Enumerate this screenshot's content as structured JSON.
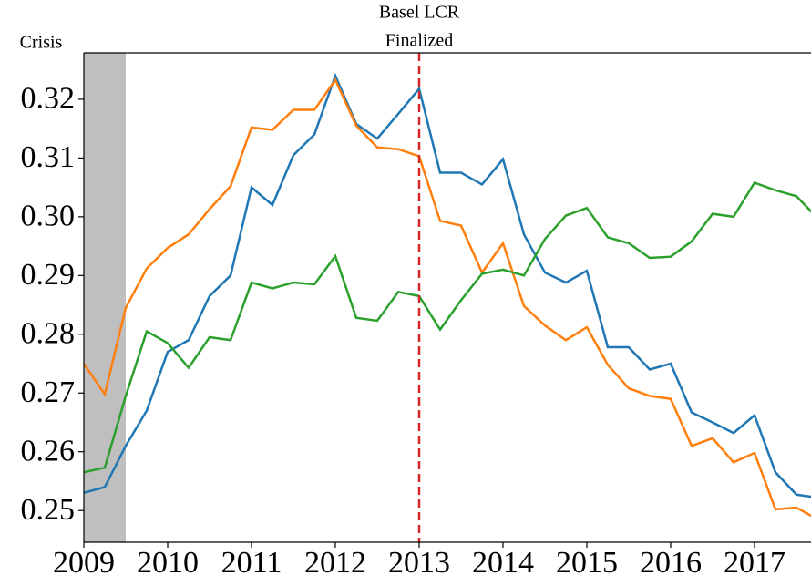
{
  "chart_data": {
    "type": "line",
    "x": [
      2009,
      2009.25,
      2009.5,
      2009.75,
      2010,
      2010.25,
      2010.5,
      2010.75,
      2011,
      2011.25,
      2011.5,
      2011.75,
      2012,
      2012.25,
      2012.5,
      2012.75,
      2013,
      2013.25,
      2013.5,
      2013.75,
      2014,
      2014.25,
      2014.5,
      2014.75,
      2015,
      2015.25,
      2015.5,
      2015.75,
      2016,
      2016.25,
      2016.5,
      2016.75,
      2017,
      2017.25,
      2017.5,
      2017.75
    ],
    "series": [
      {
        "color": "#1f77b4",
        "values": [
          0.253,
          0.254,
          0.261,
          0.267,
          0.277,
          0.279,
          0.2865,
          0.29,
          0.305,
          0.302,
          0.3105,
          0.314,
          0.324,
          0.3158,
          0.3133,
          0.3175,
          0.3218,
          0.3075,
          0.3075,
          0.3055,
          0.3098,
          0.297,
          0.2905,
          0.2888,
          0.2908,
          0.2778,
          0.2778,
          0.274,
          0.275,
          0.2667,
          0.265,
          0.2632,
          0.2662,
          0.2565,
          0.2527,
          0.2522
        ]
      },
      {
        "color": "#ff7f0e",
        "values": [
          0.275,
          0.2698,
          0.2845,
          0.2912,
          0.2947,
          0.297,
          0.3013,
          0.3052,
          0.3152,
          0.3148,
          0.3182,
          0.3182,
          0.3233,
          0.3155,
          0.3118,
          0.3115,
          0.3103,
          0.2993,
          0.2985,
          0.2905,
          0.2955,
          0.2848,
          0.2815,
          0.279,
          0.2812,
          0.2748,
          0.2708,
          0.2695,
          0.269,
          0.261,
          0.2623,
          0.2582,
          0.2598,
          0.2502,
          0.2505,
          0.2485
        ]
      },
      {
        "color": "#2ca02c",
        "values": [
          0.2565,
          0.2573,
          0.2695,
          0.2805,
          0.2785,
          0.2743,
          0.2795,
          0.279,
          0.2888,
          0.2878,
          0.2888,
          0.2885,
          0.2933,
          0.2828,
          0.2823,
          0.2872,
          0.2865,
          0.2808,
          0.2858,
          0.2903,
          0.291,
          0.29,
          0.2962,
          0.3002,
          0.3015,
          0.2965,
          0.2955,
          0.293,
          0.2932,
          0.2958,
          0.3005,
          0.3,
          0.3058,
          0.3045,
          0.3035,
          0.2998
        ]
      }
    ],
    "xlim": [
      2009,
      2017.674
    ],
    "ylim": [
      0.2446,
      0.3279
    ],
    "xticks": [
      2009,
      2010,
      2011,
      2012,
      2013,
      2014,
      2015,
      2016,
      2017
    ],
    "yticks": [
      0.25,
      0.26,
      0.27,
      0.28,
      0.29,
      {
        "value": 0.3,
        "label": "0.30"
      },
      0.31,
      0.32
    ],
    "shaded_span": {
      "range": [
        2009,
        2009.5
      ],
      "color": "#bfbfbf",
      "label": "Crisis"
    },
    "vline": {
      "x": 2013,
      "color": "#d62728",
      "label": [
        "Basel LCR",
        "Finalized"
      ]
    }
  }
}
